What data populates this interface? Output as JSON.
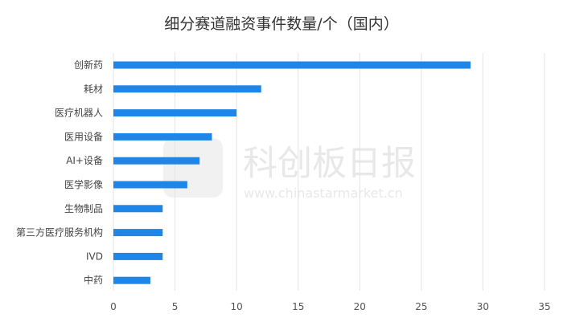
{
  "chart_data": {
    "type": "bar",
    "orientation": "horizontal",
    "title": "细分赛道融资事件数量/个（国内）",
    "categories": [
      "创新药",
      "耗材",
      "医疗机器人",
      "医用设备",
      "AI+设备",
      "医学影像",
      "生物制品",
      "第三方医疗服务机构",
      "IVD",
      "中药"
    ],
    "values": [
      29,
      12,
      10,
      8,
      7,
      6,
      4,
      4,
      4,
      3
    ],
    "xlim": [
      0,
      35
    ],
    "xticks": [
      0,
      5,
      10,
      15,
      20,
      25,
      30,
      35
    ],
    "grid": "vertical",
    "bar_color": "#1f86e9",
    "grid_color": "#e3e3e3"
  },
  "watermark": {
    "name": "科创板日报",
    "url": "www.chinastarmarket.cn"
  }
}
